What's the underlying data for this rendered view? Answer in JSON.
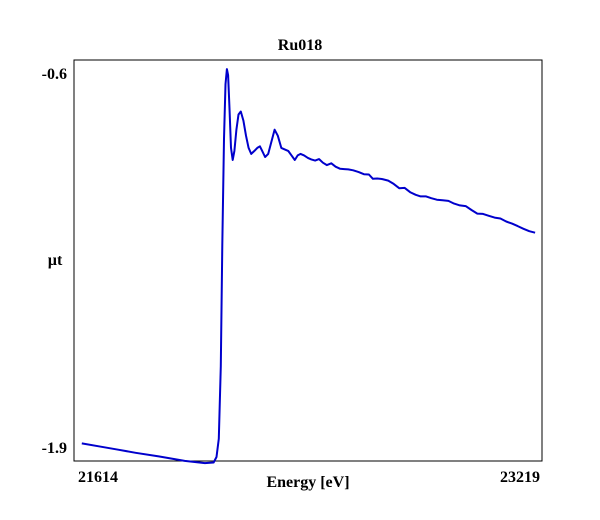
{
  "chart_data": {
    "type": "line",
    "title": "Ru018",
    "xlabel": "Energy [eV]",
    "ylabel": "µt",
    "xlim": [
      21614,
      23219
    ],
    "ylim": [
      -1.9,
      -0.6
    ],
    "x_tick_labels": [
      "21614",
      "23219"
    ],
    "y_tick_labels": [
      "-0.6",
      "-1.9"
    ],
    "grid": false,
    "legend": "none",
    "series": [
      {
        "color": "#0000cc",
        "x": [
          21634,
          21700,
          21760,
          21820,
          21900,
          21990,
          22060,
          22090,
          22100,
          22108,
          22115,
          22120,
          22126,
          22131,
          22136,
          22140,
          22145,
          22150,
          22156,
          22162,
          22169,
          22176,
          22184,
          22193,
          22202,
          22211,
          22220,
          22231,
          22241,
          22250,
          22258,
          22268,
          22279,
          22290,
          22301,
          22312,
          22324,
          22336,
          22348,
          22360,
          22371,
          22381,
          22391,
          22403,
          22416,
          22428,
          22441,
          22455,
          22468,
          22482,
          22497,
          22512,
          22528,
          22542,
          22556,
          22573,
          22592,
          22610,
          22627,
          22641,
          22656,
          22674,
          22694,
          22713,
          22732,
          22751,
          22771,
          22789,
          22806,
          22825,
          22843,
          22862,
          22882,
          22902,
          22922,
          22942,
          22962,
          22982,
          23002,
          23022,
          23042,
          23062,
          23082,
          23102,
          23122,
          23142,
          23162,
          23182,
          23202
        ],
        "y": [
          -1.855,
          -1.866,
          -1.876,
          -1.886,
          -1.898,
          -1.913,
          -1.92,
          -1.918,
          -1.9,
          -1.84,
          -1.6,
          -1.2,
          -0.85,
          -0.67,
          -0.62,
          -0.64,
          -0.75,
          -0.88,
          -0.92,
          -0.89,
          -0.82,
          -0.77,
          -0.76,
          -0.79,
          -0.84,
          -0.88,
          -0.9,
          -0.89,
          -0.88,
          -0.875,
          -0.89,
          -0.91,
          -0.9,
          -0.86,
          -0.82,
          -0.84,
          -0.88,
          -0.885,
          -0.89,
          -0.906,
          -0.92,
          -0.905,
          -0.9,
          -0.905,
          -0.913,
          -0.918,
          -0.922,
          -0.917,
          -0.929,
          -0.937,
          -0.931,
          -0.942,
          -0.949,
          -0.95,
          -0.951,
          -0.954,
          -0.96,
          -0.967,
          -0.968,
          -0.982,
          -0.981,
          -0.983,
          -0.988,
          -0.999,
          -1.013,
          -1.012,
          -1.027,
          -1.035,
          -1.04,
          -1.04,
          -1.046,
          -1.051,
          -1.053,
          -1.055,
          -1.064,
          -1.07,
          -1.072,
          -1.085,
          -1.097,
          -1.098,
          -1.104,
          -1.11,
          -1.113,
          -1.123,
          -1.13,
          -1.138,
          -1.147,
          -1.155,
          -1.16
        ]
      }
    ]
  }
}
